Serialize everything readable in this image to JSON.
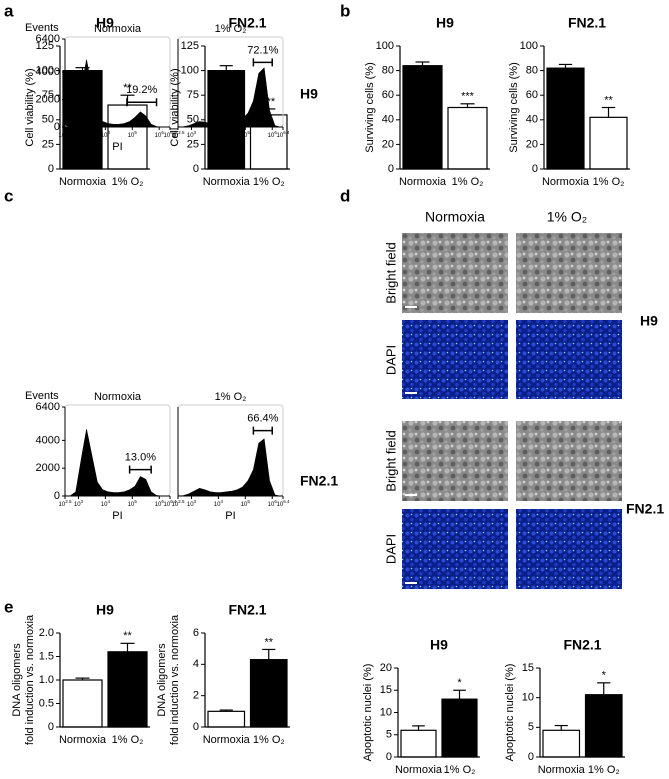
{
  "panel_labels": [
    "a",
    "b",
    "c",
    "d",
    "e"
  ],
  "flow_row_labels": [
    "H9",
    "FN2.1"
  ],
  "image_columns": [
    "Normoxia",
    "1% O₂"
  ],
  "image_rows": [
    "Bright field",
    "DAPI"
  ],
  "image_groups": [
    "H9",
    "FN2.1"
  ],
  "chart_data": [
    {
      "type": "bar",
      "title": "H9",
      "ylabel": [
        "Cell viability (%)"
      ],
      "categories": [
        "Normoxia",
        "1% O₂"
      ],
      "values": [
        100,
        65
      ],
      "errors": [
        3,
        10
      ],
      "colors": [
        "#000000",
        "#ffffff"
      ],
      "significance": "**",
      "ylim": [
        0,
        125
      ],
      "yticks": [
        0,
        25,
        50,
        75,
        100,
        125
      ]
    },
    {
      "type": "bar",
      "title": "FN2.1",
      "ylabel": [
        "Cell viability (%)"
      ],
      "categories": [
        "Normoxia",
        "1% O₂"
      ],
      "values": [
        100,
        55
      ],
      "errors": [
        5,
        6
      ],
      "colors": [
        "#000000",
        "#ffffff"
      ],
      "significance": "***",
      "ylim": [
        0,
        125
      ],
      "yticks": [
        0,
        25,
        50,
        75,
        100,
        125
      ]
    },
    {
      "type": "bar",
      "title": "H9",
      "ylabel": [
        "Surviving cells (%)"
      ],
      "categories": [
        "Normoxia",
        "1% O₂"
      ],
      "values": [
        84,
        50
      ],
      "errors": [
        3,
        3
      ],
      "colors": [
        "#000000",
        "#ffffff"
      ],
      "significance": "***",
      "ylim": [
        0,
        100
      ],
      "yticks": [
        0,
        20,
        40,
        60,
        80,
        100
      ]
    },
    {
      "type": "bar",
      "title": "FN2.1",
      "ylabel": [
        "Surviving cells (%)"
      ],
      "categories": [
        "Normoxia",
        "1% O₂"
      ],
      "values": [
        82,
        42
      ],
      "errors": [
        3,
        8
      ],
      "colors": [
        "#000000",
        "#ffffff"
      ],
      "significance": "**",
      "ylim": [
        0,
        100
      ],
      "yticks": [
        0,
        20,
        40,
        60,
        80,
        100
      ]
    },
    {
      "type": "area",
      "title": "Normoxia",
      "ylabel": "Events",
      "xlabel": "PI",
      "x": [
        2.5,
        2.7,
        2.9,
        3.1,
        3.3,
        3.5,
        3.7,
        3.9,
        4.1,
        4.3,
        4.5,
        4.7,
        4.9,
        5.1,
        5.3,
        5.5,
        5.7,
        5.9,
        6.1,
        6.3,
        6.4
      ],
      "values": [
        0,
        20,
        300,
        2700,
        4900,
        2800,
        900,
        400,
        250,
        200,
        200,
        250,
        400,
        700,
        1100,
        800,
        200,
        30,
        0,
        0,
        0
      ],
      "color": "#000000",
      "xlim": [
        2.5,
        6.4
      ],
      "xticks": [
        2.5,
        3,
        4,
        5,
        6,
        6.4
      ],
      "x_tick_base": "10",
      "ylim": [
        0,
        6400
      ],
      "yticks": [
        0,
        2000,
        4000,
        6400
      ],
      "gate": [
        4.8,
        5.9
      ],
      "gate_level": 1800,
      "gate_label": "19.2%"
    },
    {
      "type": "area",
      "title": "1% O₂",
      "xlabel": "PI",
      "x": [
        2.5,
        2.7,
        2.9,
        3.1,
        3.3,
        3.5,
        3.7,
        3.9,
        4.1,
        4.3,
        4.5,
        4.7,
        4.9,
        5.1,
        5.3,
        5.5,
        5.7,
        5.9,
        6.1,
        6.3,
        6.4
      ],
      "values": [
        0,
        20,
        100,
        250,
        400,
        350,
        250,
        200,
        200,
        250,
        300,
        400,
        600,
        1000,
        1900,
        3900,
        4300,
        1200,
        100,
        0,
        0
      ],
      "color": "#000000",
      "xlim": [
        2.5,
        6.4
      ],
      "xticks": [
        2.5,
        3,
        4,
        5,
        6,
        6.4
      ],
      "x_tick_base": "10",
      "ylim": [
        0,
        6400
      ],
      "gate": [
        5.3,
        6.0
      ],
      "gate_level": 4700,
      "gate_label": "72.1%"
    },
    {
      "type": "area",
      "title": "Normoxia",
      "ylabel": "Events",
      "xlabel": "PI",
      "x": [
        2.5,
        2.7,
        2.9,
        3.1,
        3.3,
        3.5,
        3.7,
        3.9,
        4.1,
        4.3,
        4.5,
        4.7,
        4.9,
        5.1,
        5.3,
        5.5,
        5.7,
        5.9,
        6.1,
        6.3,
        6.4
      ],
      "values": [
        0,
        20,
        300,
        2600,
        4800,
        2900,
        1000,
        450,
        300,
        250,
        250,
        300,
        450,
        700,
        1400,
        1200,
        300,
        40,
        0,
        0,
        0
      ],
      "color": "#000000",
      "xlim": [
        2.5,
        6.4
      ],
      "xticks": [
        2.5,
        3,
        4,
        5,
        6,
        6.4
      ],
      "x_tick_base": "10",
      "ylim": [
        0,
        6400
      ],
      "yticks": [
        0,
        2000,
        4000,
        6400
      ],
      "gate": [
        4.9,
        5.7
      ],
      "gate_level": 1900,
      "gate_label": "13.0%"
    },
    {
      "type": "area",
      "title": "1% O₂",
      "xlabel": "PI",
      "x": [
        2.5,
        2.7,
        2.9,
        3.1,
        3.3,
        3.5,
        3.7,
        3.9,
        4.1,
        4.3,
        4.5,
        4.7,
        4.9,
        5.1,
        5.3,
        5.5,
        5.7,
        5.9,
        6.1,
        6.3,
        6.4
      ],
      "values": [
        0,
        30,
        150,
        350,
        550,
        450,
        300,
        250,
        250,
        300,
        350,
        450,
        650,
        1100,
        1900,
        3800,
        4100,
        1100,
        80,
        0,
        0
      ],
      "color": "#000000",
      "xlim": [
        2.5,
        6.4
      ],
      "xticks": [
        2.5,
        3,
        4,
        5,
        6,
        6.4
      ],
      "x_tick_base": "10",
      "ylim": [
        0,
        6400
      ],
      "gate": [
        5.3,
        6.0
      ],
      "gate_level": 4700,
      "gate_label": "66.4%"
    },
    {
      "type": "bar",
      "title": "H9",
      "ylabel": [
        "DNA oligomers",
        "fold induction vs. normoxia"
      ],
      "categories": [
        "Normoxia",
        "1% O₂"
      ],
      "values": [
        1.0,
        1.6
      ],
      "errors": [
        0.04,
        0.18
      ],
      "colors": [
        "#ffffff",
        "#000000"
      ],
      "significance": "**",
      "ylim": [
        0,
        2
      ],
      "yticks": [
        0,
        0.5,
        {
          "value": 1,
          "label": "1.0"
        },
        1.5,
        {
          "value": 2,
          "label": "2.0"
        }
      ]
    },
    {
      "type": "bar",
      "title": "FN2.1",
      "ylabel": [
        "DNA oligomers",
        "fold induction vs. normoxia"
      ],
      "categories": [
        "Normoxia",
        "1% O₂"
      ],
      "values": [
        1.0,
        4.3
      ],
      "errors": [
        0.08,
        0.65
      ],
      "colors": [
        "#ffffff",
        "#000000"
      ],
      "significance": "**",
      "ylim": [
        0,
        6
      ],
      "yticks": [
        0,
        2,
        4,
        6
      ]
    },
    {
      "type": "bar",
      "title": "H9",
      "ylabel": [
        "Apoptotic nuclei (%)"
      ],
      "categories": [
        "Normoxia",
        "1% O₂"
      ],
      "values": [
        6,
        13
      ],
      "errors": [
        1,
        2
      ],
      "colors": [
        "#ffffff",
        "#000000"
      ],
      "significance": "*",
      "ylim": [
        0,
        20
      ],
      "yticks": [
        0,
        5,
        10,
        15,
        20
      ]
    },
    {
      "type": "bar",
      "title": "FN2.1",
      "ylabel": [
        "Apoptotic nuclei (%)"
      ],
      "categories": [
        "Normoxia",
        "1% O₂"
      ],
      "values": [
        4.5,
        10.5
      ],
      "errors": [
        0.8,
        2
      ],
      "colors": [
        "#ffffff",
        "#000000"
      ],
      "significance": "*",
      "ylim": [
        0,
        15
      ],
      "yticks": [
        0,
        5,
        10,
        15
      ]
    }
  ]
}
